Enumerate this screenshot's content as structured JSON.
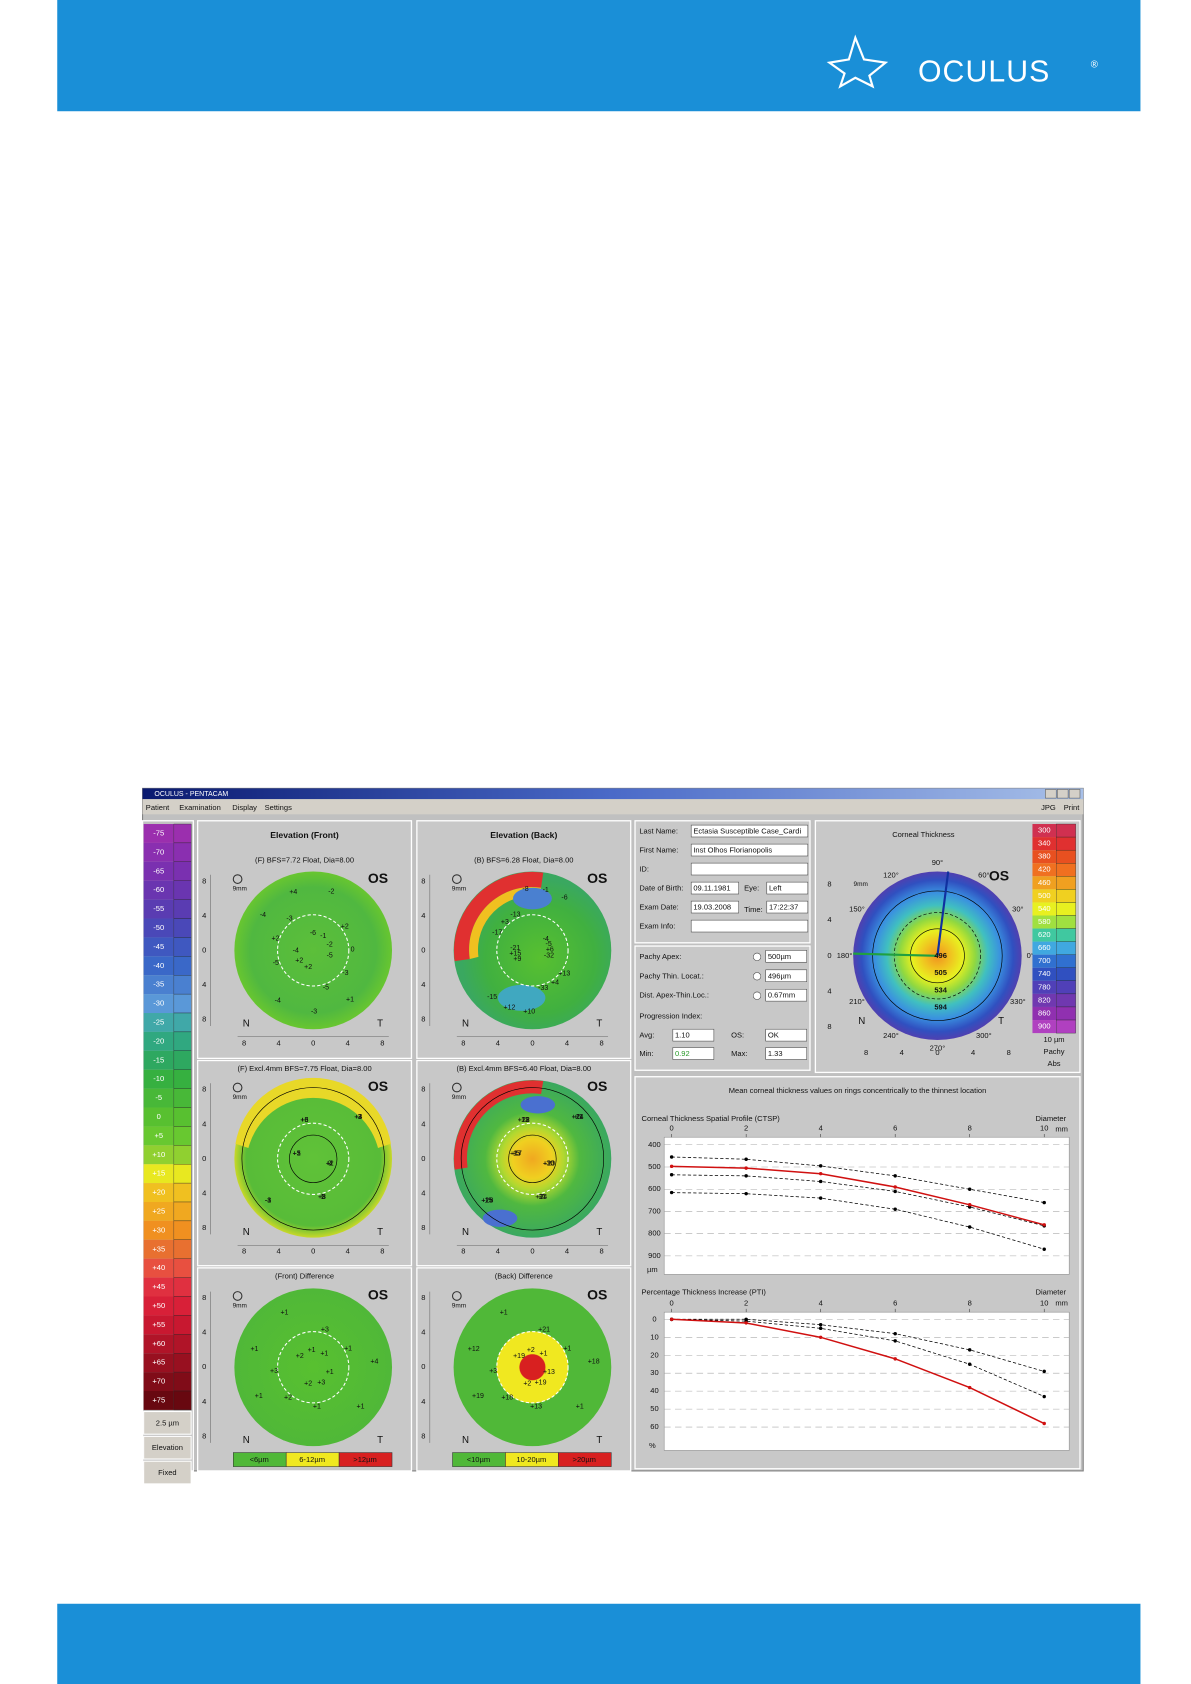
{
  "header": {
    "logo": "OCULUS",
    "registered": "®"
  },
  "window": {
    "title": "OCULUS - PENTACAM",
    "menu": [
      "Patient",
      "Examination",
      "Display",
      "Settings"
    ],
    "menu_right": [
      "JPG",
      "Print"
    ]
  },
  "elevation_scale": {
    "labels": [
      "-75",
      "-70",
      "-65",
      "-60",
      "-55",
      "-50",
      "-45",
      "-40",
      "-35",
      "-30",
      "-25",
      "-20",
      "-15",
      "-10",
      "-5",
      "0",
      "+5",
      "+10",
      "+15",
      "+20",
      "+25",
      "+30",
      "+35",
      "+40",
      "+45",
      "+50",
      "+55",
      "+60",
      "+65",
      "+70",
      "+75"
    ],
    "colors": [
      "#9b2fae",
      "#8a2fb0",
      "#7a30b0",
      "#6a35b0",
      "#5a3cb2",
      "#4a48b8",
      "#3f58c0",
      "#3a68c8",
      "#4a80d0",
      "#5a98d8",
      "#40a8a8",
      "#30a880",
      "#2ea860",
      "#36b040",
      "#48b838",
      "#58c030",
      "#68c830",
      "#90d030",
      "#e8e820",
      "#f0c020",
      "#f0a820",
      "#f09020",
      "#e87030",
      "#e85040",
      "#e03040",
      "#d82038",
      "#c81830",
      "#b01428",
      "#981020",
      "#800c18",
      "#680810"
    ],
    "footer": [
      "2.5 µm",
      "Elevation",
      "Fixed"
    ]
  },
  "map_axis": {
    "ticks": [
      "8",
      "4",
      "0",
      "4",
      "8"
    ],
    "nasal": "N",
    "temporal": "T",
    "zoom": "9mm",
    "eye": "OS"
  },
  "maps": [
    {
      "title": "Elevation (Front)",
      "subtitle": "(F) BFS=7.72 Float, Dia=8.00",
      "values": [
        "-5",
        "-5",
        "-4",
        "-4",
        "-3",
        "-2",
        "-2",
        "-3",
        "-3",
        "+2",
        "+2",
        "+4",
        "-1",
        "0",
        "+1",
        "+2",
        "-5",
        "-4",
        "-6",
        "+2"
      ]
    },
    {
      "title": "Elevation (Back)",
      "subtitle": "(B) BFS=6.28 Float, Dia=8.00",
      "values": [
        "-32",
        "-33",
        "-15",
        "-21",
        "-13",
        "-6",
        "+6",
        "+4",
        "+12",
        "+15",
        "+3",
        "-1",
        "-5",
        "+13",
        "+10",
        "+9",
        "-17",
        "-8",
        "-4"
      ]
    },
    {
      "subtitle": "(F) Excl.4mm  BFS=7.75 Float, Dia=8.00",
      "values": [
        "-4",
        "-2",
        "-1",
        "+3",
        "+6",
        "+4",
        "+2",
        "+8",
        "-3",
        "+5",
        "+6",
        "+3",
        "0",
        "-5",
        "-8",
        "+1",
        "+3",
        "-3"
      ]
    },
    {
      "subtitle": "(B) Excl.4mm  BFS=6.40 Float, Dia=8.00",
      "values": [
        "-30",
        "-31",
        "+13",
        "+5",
        "+18",
        "+21",
        "+23",
        "+24",
        "+26",
        "+17",
        "+22",
        "+14",
        "+10",
        "-7",
        "-15",
        "-13",
        "-13",
        "+5"
      ]
    },
    {
      "subtitle": "(Front) Difference",
      "values": [
        "+1",
        "+1",
        "+1",
        "+2",
        "+3",
        "+4",
        "+3",
        "+2",
        "+1",
        "+1",
        "+1",
        "+1",
        "+2",
        "+3",
        "+1",
        "+1"
      ],
      "legend": [
        "<6µm",
        "6-12µm",
        ">12µm"
      ]
    },
    {
      "subtitle": "(Back) Difference",
      "values": [
        "+13",
        "+13",
        "+19",
        "+19",
        "+21",
        "+18",
        "+19",
        "+18",
        "+12",
        "+2",
        "+1",
        "+1",
        "+2",
        "+3",
        "+1",
        "+1"
      ],
      "legend": [
        "<10µm",
        "10-20µm",
        ">20µm"
      ]
    }
  ],
  "patient": [
    {
      "label": "Last Name:",
      "value": "Ectasia Susceptible Case_Cardi"
    },
    {
      "label": "First Name:",
      "value": "Inst Olhos Florianopolis"
    },
    {
      "label": "ID:"
    },
    {
      "label": "Date of Birth:",
      "value": "09.11.1981",
      "label2": "Eye:",
      "value2": "Left"
    },
    {
      "label": "Exam Date:",
      "value": "19.03.2008",
      "label2": "Time:",
      "value2": "17:22:37"
    },
    {
      "label": "Exam Info:"
    }
  ],
  "pachy": {
    "rows": [
      {
        "label": "Pachy Apex:",
        "value": "500µm"
      },
      {
        "label": "Pachy Thin. Locat.:",
        "value": "496µm"
      },
      {
        "label": "Dist. Apex-Thin.Loc.:",
        "value": "0.67mm"
      }
    ],
    "progression": "Progression Index:",
    "avg_label": "Avg:",
    "avg": "1.10",
    "os_label": "OS:",
    "os": "OK",
    "min_label": "Min:",
    "min": "0.92",
    "max_label": "Max:",
    "max": "1.33"
  },
  "thickness": {
    "title": "Corneal Thickness",
    "values": [
      "496",
      "505",
      "534",
      "594"
    ],
    "angles": [
      "90°",
      "60°",
      "30°",
      "0°",
      "330°",
      "300°",
      "270°",
      "240°",
      "210°",
      "180°",
      "150°",
      "120°"
    ],
    "scale": [
      "300",
      "340",
      "380",
      "420",
      "460",
      "500",
      "540",
      "580",
      "620",
      "660",
      "700",
      "740",
      "780",
      "820",
      "860",
      "900"
    ],
    "colors": [
      "#d03050",
      "#e03030",
      "#e85020",
      "#f07020",
      "#f0a020",
      "#f0d020",
      "#e8f020",
      "#a0e040",
      "#40c8a0",
      "#40a8e0",
      "#3070d0",
      "#3050c0",
      "#5040b8",
      "#7038b0",
      "#9030b0",
      "#b040c0"
    ],
    "footer": [
      "10 µm",
      "Pachy",
      "Abs"
    ]
  },
  "graphs": {
    "title": "Mean corneal thickness values on rings concentrically to the thinnest location",
    "charts": [
      {
        "type": "line",
        "title": "Corneal Thickness Spatial Profile (CTSP)",
        "x_label": "Diameter",
        "x_unit": "mm",
        "y_unit": "µm",
        "x": [
          0,
          2,
          4,
          6,
          8,
          10
        ],
        "xlim": [
          -0.2,
          10.67
        ],
        "xticks": [
          0,
          2,
          4,
          6,
          8,
          10
        ],
        "ylim": [
          366,
          983
        ],
        "yticks": [
          400,
          500,
          600,
          700,
          800,
          900
        ],
        "series": [
          {
            "color": "#000000",
            "style": "dashed",
            "values": [
              455,
              465,
              495,
              540,
              600,
              660
            ]
          },
          {
            "color": "#000000",
            "style": "dashed",
            "values": [
              535,
              540,
              565,
              610,
              680,
              765
            ]
          },
          {
            "color": "#000000",
            "style": "dashed",
            "values": [
              615,
              620,
              640,
              690,
              770,
              870
            ]
          },
          {
            "color": "#d01010",
            "style": "solid",
            "values": [
              497,
              505,
              530,
              590,
              670,
              760
            ]
          }
        ]
      },
      {
        "type": "line",
        "title": "Percentage Thickness Increase (PTI)",
        "x_label": "Diameter",
        "x_unit": "mm",
        "y_unit": "%",
        "x": [
          0,
          2,
          4,
          6,
          8,
          10
        ],
        "xlim": [
          -0.2,
          10.67
        ],
        "xticks": [
          0,
          2,
          4,
          6,
          8,
          10
        ],
        "ylim": [
          -4,
          73
        ],
        "yticks": [
          0,
          10,
          20,
          30,
          40,
          50,
          60
        ],
        "series": [
          {
            "color": "#000000",
            "style": "dashed",
            "values": [
              0,
              0,
              3,
              8,
              17,
              29
            ]
          },
          {
            "color": "#000000",
            "style": "dashed",
            "values": [
              0,
              1,
              5,
              12,
              25,
              43
            ]
          },
          {
            "color": "#d01010",
            "style": "solid",
            "values": [
              0,
              2,
              10,
              22,
              38,
              58
            ]
          }
        ]
      }
    ]
  }
}
